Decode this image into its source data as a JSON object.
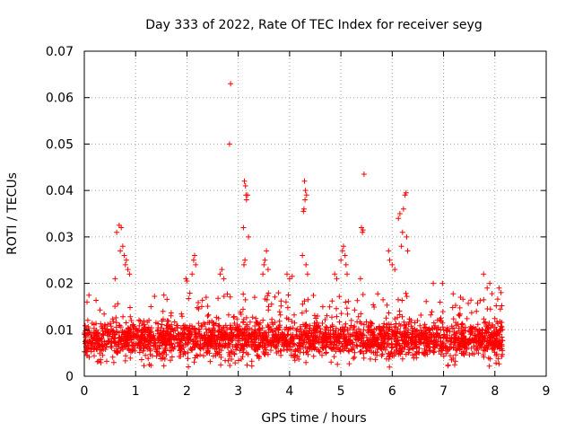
{
  "chart_data": {
    "type": "scatter",
    "title": "Day 333 of 2022, Rate Of TEC Index for receiver seyg",
    "xlabel": "GPS time / hours",
    "ylabel": "ROTI / TECUs",
    "xlim": [
      0,
      9
    ],
    "ylim": [
      0,
      0.07
    ],
    "x_ticks": [
      0,
      1,
      2,
      3,
      4,
      5,
      6,
      7,
      8,
      9
    ],
    "x_tick_labels": [
      "0",
      "1",
      "2",
      "3",
      "4",
      "5",
      "6",
      "7",
      "8",
      "9"
    ],
    "y_ticks": [
      0,
      0.01,
      0.02,
      0.03,
      0.04,
      0.05,
      0.06,
      0.07
    ],
    "y_tick_labels": [
      "0",
      "0.01",
      "0.02",
      "0.03",
      "0.04",
      "0.05",
      "0.06",
      "0.07"
    ],
    "grid": true,
    "marker": "+",
    "marker_color": "#ff0000",
    "series": [
      {
        "name": "ROTI",
        "baseline": {
          "x_range": [
            0,
            8.15
          ],
          "y_range": [
            0.002,
            0.018
          ],
          "typical": [
            0.004,
            0.012
          ]
        },
        "outliers": [
          {
            "x": 2.85,
            "y": 0.063
          },
          {
            "x": 2.83,
            "y": 0.05
          },
          {
            "x": 3.12,
            "y": 0.042
          },
          {
            "x": 3.14,
            "y": 0.041
          },
          {
            "x": 3.15,
            "y": 0.039
          },
          {
            "x": 3.16,
            "y": 0.038
          },
          {
            "x": 3.18,
            "y": 0.039
          },
          {
            "x": 3.1,
            "y": 0.032
          },
          {
            "x": 3.2,
            "y": 0.03
          },
          {
            "x": 3.13,
            "y": 0.025
          },
          {
            "x": 3.11,
            "y": 0.024
          },
          {
            "x": 4.29,
            "y": 0.042
          },
          {
            "x": 4.31,
            "y": 0.04
          },
          {
            "x": 4.33,
            "y": 0.039
          },
          {
            "x": 4.3,
            "y": 0.038
          },
          {
            "x": 4.28,
            "y": 0.036
          },
          {
            "x": 4.27,
            "y": 0.0355
          },
          {
            "x": 4.32,
            "y": 0.024
          },
          {
            "x": 4.35,
            "y": 0.022
          },
          {
            "x": 4.25,
            "y": 0.026
          },
          {
            "x": 5.45,
            "y": 0.0435
          },
          {
            "x": 5.4,
            "y": 0.032
          },
          {
            "x": 5.42,
            "y": 0.031
          },
          {
            "x": 5.43,
            "y": 0.0315
          },
          {
            "x": 5.38,
            "y": 0.021
          },
          {
            "x": 6.25,
            "y": 0.039
          },
          {
            "x": 6.27,
            "y": 0.0395
          },
          {
            "x": 6.22,
            "y": 0.036
          },
          {
            "x": 6.15,
            "y": 0.035
          },
          {
            "x": 6.12,
            "y": 0.034
          },
          {
            "x": 6.2,
            "y": 0.031
          },
          {
            "x": 6.28,
            "y": 0.03
          },
          {
            "x": 6.18,
            "y": 0.028
          },
          {
            "x": 6.3,
            "y": 0.027
          },
          {
            "x": 5.93,
            "y": 0.027
          },
          {
            "x": 5.95,
            "y": 0.025
          },
          {
            "x": 6.0,
            "y": 0.024
          },
          {
            "x": 6.05,
            "y": 0.023
          },
          {
            "x": 0.68,
            "y": 0.0325
          },
          {
            "x": 0.72,
            "y": 0.032
          },
          {
            "x": 0.63,
            "y": 0.031
          },
          {
            "x": 0.75,
            "y": 0.028
          },
          {
            "x": 0.7,
            "y": 0.027
          },
          {
            "x": 0.78,
            "y": 0.026
          },
          {
            "x": 0.82,
            "y": 0.025
          },
          {
            "x": 0.8,
            "y": 0.024
          },
          {
            "x": 0.85,
            "y": 0.023
          },
          {
            "x": 0.6,
            "y": 0.021
          },
          {
            "x": 0.88,
            "y": 0.022
          },
          {
            "x": 5.05,
            "y": 0.028
          },
          {
            "x": 5.03,
            "y": 0.027
          },
          {
            "x": 5.08,
            "y": 0.026
          },
          {
            "x": 5.0,
            "y": 0.025
          },
          {
            "x": 5.1,
            "y": 0.024
          },
          {
            "x": 5.12,
            "y": 0.022
          },
          {
            "x": 3.55,
            "y": 0.027
          },
          {
            "x": 3.52,
            "y": 0.025
          },
          {
            "x": 3.5,
            "y": 0.024
          },
          {
            "x": 3.58,
            "y": 0.023
          },
          {
            "x": 3.48,
            "y": 0.022
          },
          {
            "x": 2.15,
            "y": 0.026
          },
          {
            "x": 2.13,
            "y": 0.025
          },
          {
            "x": 2.17,
            "y": 0.024
          },
          {
            "x": 2.1,
            "y": 0.022
          },
          {
            "x": 2.68,
            "y": 0.023
          },
          {
            "x": 2.65,
            "y": 0.022
          },
          {
            "x": 2.72,
            "y": 0.021
          },
          {
            "x": 3.95,
            "y": 0.022
          },
          {
            "x": 4.0,
            "y": 0.021
          },
          {
            "x": 4.05,
            "y": 0.0215
          },
          {
            "x": 1.98,
            "y": 0.021
          },
          {
            "x": 2.0,
            "y": 0.0205
          },
          {
            "x": 4.88,
            "y": 0.022
          },
          {
            "x": 4.92,
            "y": 0.021
          },
          {
            "x": 7.78,
            "y": 0.022
          },
          {
            "x": 7.85,
            "y": 0.019
          },
          {
            "x": 7.9,
            "y": 0.02
          },
          {
            "x": 6.98,
            "y": 0.02
          },
          {
            "x": 6.8,
            "y": 0.02
          },
          {
            "x": 8.08,
            "y": 0.019
          },
          {
            "x": 8.12,
            "y": 0.018
          }
        ]
      }
    ]
  }
}
